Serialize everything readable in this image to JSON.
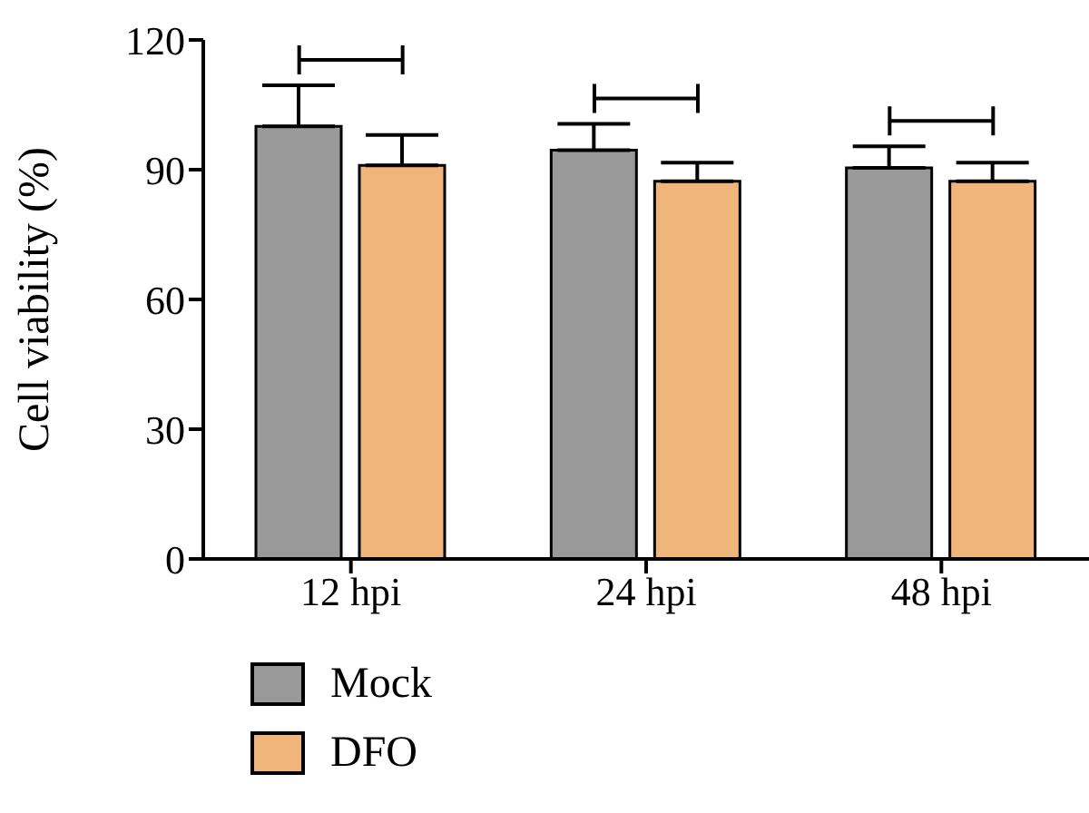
{
  "chart_data": {
    "type": "bar",
    "ylabel": "Cell viability (%)",
    "categories": [
      "12 hpi",
      "24 hpi",
      "48 hpi"
    ],
    "series": [
      {
        "name": "Mock",
        "color": "#999999",
        "values": [
          100,
          94.5,
          90.4
        ],
        "errors": [
          [
            100,
            109.5
          ],
          [
            94.5,
            100.6
          ],
          [
            90.4,
            95.4
          ]
        ]
      },
      {
        "name": "DFO",
        "color": "#f0b57a",
        "values": [
          91,
          87.3,
          87.3
        ],
        "errors": [
          [
            91,
            98
          ],
          [
            87.3,
            91.6
          ],
          [
            87.3,
            91.6
          ]
        ]
      }
    ],
    "ylim": [
      0,
      120
    ],
    "yticks": [
      0,
      30,
      60,
      90,
      120
    ],
    "grid": false,
    "legend": "bottom left"
  }
}
